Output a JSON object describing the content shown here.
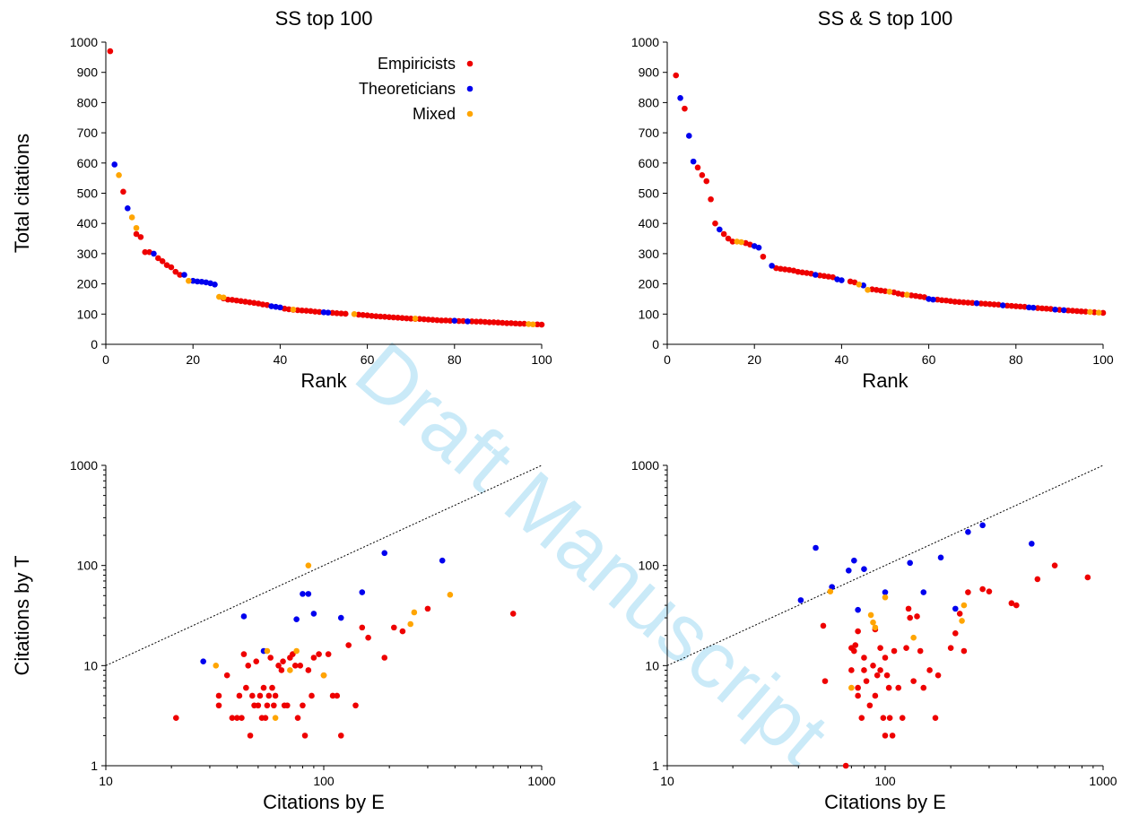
{
  "watermark": "Draft Manuscript",
  "colors": {
    "Empiricists": "#ee0000",
    "Theoreticians": "#0000ee",
    "Mixed": "#ffa500"
  },
  "legend": {
    "placement": "top-right",
    "entries": [
      "Empiricists",
      "Theoreticians",
      "Mixed"
    ]
  },
  "chart_data": [
    {
      "id": "ss-rank",
      "type": "scatter",
      "title": "SS top 100",
      "xlabel": "Rank",
      "ylabel": "Total citations",
      "xscale": "linear",
      "yscale": "linear",
      "xlim": [
        0,
        100
      ],
      "ylim": [
        0,
        1000
      ],
      "xticks": [
        0,
        20,
        40,
        60,
        80,
        100
      ],
      "yticks": [
        0,
        100,
        200,
        300,
        400,
        500,
        600,
        700,
        800,
        900,
        1000
      ],
      "legend": true,
      "series": [
        {
          "name": "Empiricists",
          "x": [
            1,
            4,
            7,
            8,
            9,
            10,
            12,
            13,
            14,
            15,
            16,
            17,
            27,
            28,
            29,
            30,
            31,
            32,
            33,
            34,
            35,
            36,
            37,
            41,
            42,
            43,
            44,
            45,
            46,
            47,
            48,
            49,
            52,
            53,
            54,
            55,
            58,
            59,
            60,
            61,
            62,
            63,
            64,
            65,
            66,
            67,
            68,
            69,
            70,
            71,
            72,
            73,
            74,
            75,
            76,
            77,
            78,
            79,
            81,
            82,
            84,
            85,
            86,
            87,
            88,
            89,
            90,
            91,
            92,
            93,
            94,
            95,
            96,
            99,
            100
          ],
          "y": [
            970,
            505,
            365,
            355,
            305,
            305,
            285,
            275,
            262,
            255,
            240,
            230,
            152,
            148,
            147,
            145,
            143,
            141,
            139,
            137,
            135,
            132,
            130,
            118,
            116,
            114,
            113,
            112,
            111,
            110,
            108,
            107,
            104,
            103,
            102,
            101,
            98,
            97,
            96,
            94,
            93,
            92,
            91,
            90,
            89,
            88,
            87,
            86,
            85,
            84,
            84,
            83,
            82,
            81,
            80,
            79,
            79,
            78,
            77,
            77,
            76,
            75,
            75,
            74,
            73,
            73,
            72,
            71,
            70,
            70,
            69,
            68,
            68,
            66,
            65
          ]
        },
        {
          "name": "Theoreticians",
          "x": [
            2,
            5,
            11,
            18,
            20,
            21,
            22,
            23,
            24,
            25,
            38,
            39,
            40,
            50,
            51,
            80,
            83
          ],
          "y": [
            595,
            450,
            300,
            230,
            210,
            208,
            207,
            205,
            202,
            198,
            126,
            124,
            122,
            106,
            105,
            78,
            76
          ]
        },
        {
          "name": "Mixed",
          "x": [
            3,
            6,
            7,
            19,
            26,
            27,
            43,
            57,
            71,
            97,
            98
          ],
          "y": [
            560,
            420,
            385,
            210,
            157,
            155,
            115,
            100,
            85,
            67,
            66
          ]
        }
      ]
    },
    {
      "id": "sss-rank",
      "type": "scatter",
      "title": "SS & S top 100",
      "xlabel": "Rank",
      "ylabel": "",
      "xscale": "linear",
      "yscale": "linear",
      "xlim": [
        0,
        100
      ],
      "ylim": [
        0,
        1000
      ],
      "xticks": [
        0,
        20,
        40,
        60,
        80,
        100
      ],
      "yticks": [
        0,
        100,
        200,
        300,
        400,
        500,
        600,
        700,
        800,
        900,
        1000
      ],
      "legend": false,
      "series": [
        {
          "name": "Empiricists",
          "x": [
            2,
            4,
            7,
            8,
            9,
            10,
            11,
            13,
            14,
            15,
            18,
            19,
            22,
            25,
            26,
            27,
            28,
            29,
            30,
            31,
            32,
            33,
            35,
            36,
            37,
            38,
            42,
            43,
            47,
            48,
            49,
            50,
            52,
            53,
            54,
            56,
            57,
            58,
            59,
            62,
            63,
            64,
            65,
            66,
            67,
            68,
            69,
            70,
            72,
            73,
            74,
            75,
            76,
            78,
            79,
            80,
            81,
            82,
            85,
            86,
            87,
            88,
            90,
            92,
            93,
            94,
            95,
            96,
            98,
            100
          ],
          "y": [
            890,
            780,
            585,
            560,
            540,
            480,
            400,
            365,
            350,
            340,
            335,
            330,
            290,
            252,
            250,
            248,
            246,
            244,
            240,
            238,
            236,
            234,
            228,
            226,
            224,
            222,
            208,
            205,
            182,
            180,
            178,
            176,
            172,
            168,
            165,
            162,
            160,
            158,
            156,
            148,
            146,
            145,
            143,
            141,
            140,
            139,
            138,
            137,
            135,
            134,
            133,
            132,
            131,
            128,
            127,
            126,
            125,
            124,
            120,
            119,
            118,
            117,
            114,
            112,
            111,
            110,
            109,
            108,
            106,
            104
          ]
        },
        {
          "name": "Theoreticians",
          "x": [
            3,
            5,
            6,
            12,
            20,
            21,
            24,
            34,
            39,
            40,
            45,
            60,
            61,
            71,
            77,
            83,
            84,
            89,
            91
          ],
          "y": [
            815,
            690,
            605,
            380,
            325,
            320,
            260,
            230,
            215,
            212,
            195,
            150,
            148,
            136,
            129,
            122,
            121,
            115,
            113
          ]
        },
        {
          "name": "Mixed",
          "x": [
            16,
            17,
            44,
            46,
            51,
            55,
            97,
            99
          ],
          "y": [
            340,
            338,
            198,
            180,
            174,
            164,
            107,
            105
          ]
        }
      ]
    },
    {
      "id": "ss-et",
      "type": "scatter",
      "title": "",
      "xlabel": "Citations by E",
      "ylabel": "Citations by T",
      "xscale": "log",
      "yscale": "log",
      "xlim": [
        10,
        1000
      ],
      "ylim": [
        1,
        1000
      ],
      "xticks": [
        10,
        100,
        1000
      ],
      "yticks": [
        1,
        10,
        100,
        1000
      ],
      "diagonal": true,
      "legend": false,
      "series": [
        {
          "name": "Empiricists",
          "x": [
            21,
            33,
            33,
            36,
            38,
            40,
            41,
            42,
            43,
            44,
            45,
            46,
            47,
            48,
            49,
            50,
            51,
            52,
            53,
            54,
            55,
            56,
            57,
            58,
            59,
            60,
            62,
            64,
            65,
            66,
            68,
            70,
            72,
            74,
            76,
            78,
            80,
            82,
            85,
            88,
            90,
            95,
            100,
            105,
            110,
            115,
            120,
            130,
            140,
            150,
            160,
            190,
            210,
            230,
            300,
            740
          ],
          "y": [
            3,
            4,
            5,
            8,
            3,
            3,
            5,
            3,
            13,
            6,
            10,
            2,
            5,
            4,
            11,
            4,
            5,
            3,
            6,
            3,
            4,
            5,
            12,
            6,
            4,
            5,
            10,
            9,
            11,
            4,
            4,
            12,
            13,
            10,
            3,
            10,
            4,
            2,
            9,
            5,
            12,
            13,
            8,
            13,
            5,
            5,
            2,
            16,
            4,
            24,
            19,
            12,
            24,
            22,
            37,
            33
          ]
        },
        {
          "name": "Theoreticians",
          "x": [
            28,
            43,
            53,
            75,
            80,
            85,
            90,
            120,
            150,
            190,
            350
          ],
          "y": [
            11,
            31,
            14,
            29,
            52,
            52,
            33,
            30,
            54,
            133,
            112
          ]
        },
        {
          "name": "Mixed",
          "x": [
            32,
            55,
            60,
            70,
            75,
            85,
            100,
            250,
            260,
            380
          ],
          "y": [
            10,
            14,
            3,
            9,
            14,
            100,
            8,
            26,
            34,
            51
          ]
        }
      ]
    },
    {
      "id": "sss-et",
      "type": "scatter",
      "title": "",
      "xlabel": "Citations by E",
      "ylabel": "",
      "xscale": "log",
      "yscale": "log",
      "xlim": [
        10,
        1000
      ],
      "ylim": [
        1,
        1000
      ],
      "xticks": [
        10,
        100,
        1000
      ],
      "yticks": [
        1,
        10,
        100,
        1000
      ],
      "diagonal": true,
      "legend": false,
      "series": [
        {
          "name": "Empiricists",
          "x": [
            52,
            53,
            66,
            70,
            72,
            73,
            75,
            75,
            78,
            80,
            80,
            82,
            85,
            88,
            90,
            90,
            92,
            95,
            95,
            98,
            100,
            100,
            102,
            104,
            105,
            108,
            110,
            115,
            120,
            125,
            128,
            130,
            135,
            140,
            145,
            150,
            160,
            170,
            175,
            200,
            210,
            220,
            230,
            240,
            280,
            300,
            380,
            400,
            500,
            600,
            850,
            70,
            75
          ],
          "y": [
            25,
            7,
            1,
            9,
            14,
            16,
            22,
            5,
            3,
            9,
            12,
            7,
            4,
            10,
            5,
            23,
            8,
            9,
            15,
            3,
            2,
            12,
            8,
            6,
            3,
            2,
            14,
            6,
            3,
            15,
            37,
            30,
            7,
            31,
            14,
            6,
            9,
            3,
            8,
            15,
            21,
            33,
            14,
            54,
            58,
            55,
            42,
            40,
            73,
            100,
            76,
            15,
            6
          ],
          "y_extra": []
        },
        {
          "name": "Theoreticians",
          "x": [
            41,
            48,
            57,
            68,
            72,
            75,
            80,
            100,
            130,
            150,
            180,
            210,
            240,
            280,
            470
          ],
          "y": [
            45,
            150,
            61,
            89,
            112,
            36,
            92,
            54,
            106,
            54,
            120,
            37,
            216,
            252,
            165
          ]
        },
        {
          "name": "Mixed",
          "x": [
            56,
            70,
            86,
            88,
            90,
            100,
            135,
            225,
            230
          ],
          "y": [
            55,
            6,
            32,
            27,
            24,
            48,
            19,
            28,
            40
          ]
        }
      ]
    }
  ]
}
